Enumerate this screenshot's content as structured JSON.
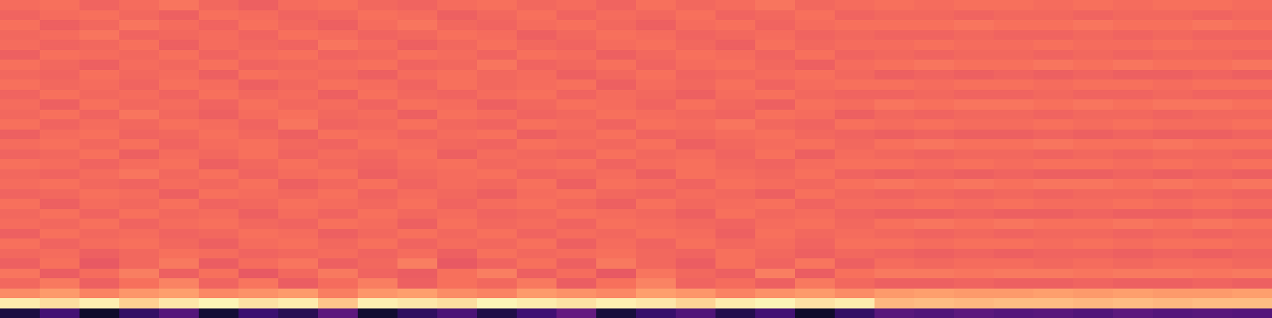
{
  "chart_data": {
    "type": "heatmap",
    "zlim": [
      0,
      1
    ],
    "tick_labels": false,
    "cells": [
      [
        0.69,
        0.7,
        0.67,
        0.69,
        0.71,
        0.68,
        0.66,
        0.69,
        0.7,
        0.68,
        0.67,
        0.69,
        0.7,
        0.68,
        0.69,
        0.67,
        0.7,
        0.68,
        0.69,
        0.71,
        0.68,
        0.69,
        0.7,
        0.69,
        0.7,
        0.7,
        0.69,
        0.7,
        0.69,
        0.7,
        0.7,
        0.69
      ],
      [
        0.67,
        0.69,
        0.7,
        0.68,
        0.66,
        0.7,
        0.69,
        0.67,
        0.68,
        0.7,
        0.69,
        0.66,
        0.68,
        0.7,
        0.67,
        0.69,
        0.68,
        0.7,
        0.67,
        0.68,
        0.7,
        0.67,
        0.68,
        0.68,
        0.67,
        0.68,
        0.68,
        0.67,
        0.68,
        0.68,
        0.67,
        0.68
      ],
      [
        0.7,
        0.66,
        0.68,
        0.71,
        0.69,
        0.67,
        0.7,
        0.68,
        0.66,
        0.69,
        0.71,
        0.68,
        0.67,
        0.69,
        0.7,
        0.68,
        0.66,
        0.69,
        0.7,
        0.67,
        0.69,
        0.7,
        0.7,
        0.7,
        0.71,
        0.7,
        0.7,
        0.71,
        0.7,
        0.7,
        0.71,
        0.7
      ],
      [
        0.68,
        0.69,
        0.71,
        0.67,
        0.68,
        0.69,
        0.67,
        0.7,
        0.69,
        0.67,
        0.68,
        0.7,
        0.69,
        0.66,
        0.68,
        0.7,
        0.69,
        0.67,
        0.68,
        0.69,
        0.67,
        0.68,
        0.67,
        0.67,
        0.68,
        0.67,
        0.67,
        0.68,
        0.67,
        0.68,
        0.67,
        0.67
      ],
      [
        0.69,
        0.67,
        0.68,
        0.7,
        0.66,
        0.69,
        0.68,
        0.67,
        0.71,
        0.69,
        0.66,
        0.68,
        0.7,
        0.68,
        0.67,
        0.69,
        0.7,
        0.68,
        0.66,
        0.7,
        0.68,
        0.69,
        0.69,
        0.7,
        0.69,
        0.69,
        0.7,
        0.69,
        0.69,
        0.7,
        0.69,
        0.69
      ],
      [
        0.66,
        0.7,
        0.69,
        0.68,
        0.7,
        0.67,
        0.69,
        0.7,
        0.67,
        0.68,
        0.7,
        0.69,
        0.67,
        0.7,
        0.69,
        0.66,
        0.68,
        0.7,
        0.69,
        0.67,
        0.7,
        0.67,
        0.68,
        0.67,
        0.68,
        0.68,
        0.67,
        0.68,
        0.67,
        0.68,
        0.68,
        0.67
      ],
      [
        0.7,
        0.68,
        0.66,
        0.69,
        0.68,
        0.7,
        0.67,
        0.68,
        0.69,
        0.7,
        0.67,
        0.68,
        0.71,
        0.67,
        0.68,
        0.7,
        0.67,
        0.69,
        0.7,
        0.68,
        0.66,
        0.69,
        0.7,
        0.71,
        0.7,
        0.7,
        0.71,
        0.7,
        0.71,
        0.7,
        0.7,
        0.71
      ],
      [
        0.68,
        0.67,
        0.7,
        0.68,
        0.69,
        0.66,
        0.7,
        0.69,
        0.68,
        0.66,
        0.69,
        0.7,
        0.68,
        0.69,
        0.66,
        0.68,
        0.7,
        0.67,
        0.68,
        0.69,
        0.7,
        0.68,
        0.66,
        0.67,
        0.66,
        0.67,
        0.66,
        0.67,
        0.66,
        0.66,
        0.67,
        0.66
      ],
      [
        0.7,
        0.68,
        0.69,
        0.67,
        0.7,
        0.69,
        0.66,
        0.68,
        0.7,
        0.69,
        0.67,
        0.7,
        0.68,
        0.69,
        0.7,
        0.66,
        0.69,
        0.68,
        0.7,
        0.67,
        0.69,
        0.7,
        0.7,
        0.69,
        0.7,
        0.7,
        0.69,
        0.7,
        0.7,
        0.69,
        0.7,
        0.7
      ],
      [
        0.67,
        0.7,
        0.68,
        0.69,
        0.67,
        0.7,
        0.68,
        0.69,
        0.66,
        0.7,
        0.68,
        0.67,
        0.69,
        0.7,
        0.67,
        0.69,
        0.68,
        0.66,
        0.69,
        0.7,
        0.68,
        0.67,
        0.67,
        0.68,
        0.67,
        0.67,
        0.68,
        0.67,
        0.67,
        0.68,
        0.67,
        0.67
      ],
      [
        0.69,
        0.66,
        0.7,
        0.68,
        0.69,
        0.67,
        0.7,
        0.68,
        0.69,
        0.67,
        0.7,
        0.69,
        0.66,
        0.68,
        0.7,
        0.69,
        0.67,
        0.7,
        0.68,
        0.66,
        0.7,
        0.69,
        0.71,
        0.7,
        0.71,
        0.71,
        0.7,
        0.71,
        0.7,
        0.71,
        0.71,
        0.7
      ],
      [
        0.68,
        0.7,
        0.67,
        0.71,
        0.68,
        0.66,
        0.69,
        0.7,
        0.68,
        0.69,
        0.66,
        0.7,
        0.69,
        0.67,
        0.68,
        0.7,
        0.69,
        0.68,
        0.67,
        0.7,
        0.69,
        0.66,
        0.68,
        0.67,
        0.68,
        0.68,
        0.67,
        0.68,
        0.68,
        0.67,
        0.68,
        0.68
      ],
      [
        0.7,
        0.67,
        0.69,
        0.68,
        0.7,
        0.69,
        0.67,
        0.71,
        0.67,
        0.68,
        0.7,
        0.68,
        0.67,
        0.7,
        0.69,
        0.67,
        0.7,
        0.69,
        0.71,
        0.68,
        0.67,
        0.7,
        0.69,
        0.7,
        0.69,
        0.69,
        0.7,
        0.69,
        0.7,
        0.69,
        0.69,
        0.7
      ],
      [
        0.66,
        0.69,
        0.7,
        0.67,
        0.68,
        0.7,
        0.68,
        0.66,
        0.7,
        0.69,
        0.67,
        0.69,
        0.7,
        0.66,
        0.68,
        0.7,
        0.67,
        0.68,
        0.69,
        0.7,
        0.68,
        0.67,
        0.66,
        0.67,
        0.66,
        0.66,
        0.67,
        0.66,
        0.67,
        0.66,
        0.66,
        0.67
      ],
      [
        0.69,
        0.7,
        0.68,
        0.7,
        0.67,
        0.69,
        0.7,
        0.68,
        0.67,
        0.7,
        0.69,
        0.68,
        0.67,
        0.7,
        0.69,
        0.68,
        0.7,
        0.66,
        0.68,
        0.69,
        0.7,
        0.68,
        0.7,
        0.71,
        0.7,
        0.7,
        0.71,
        0.7,
        0.7,
        0.71,
        0.7,
        0.7
      ],
      [
        0.67,
        0.68,
        0.7,
        0.66,
        0.69,
        0.68,
        0.7,
        0.67,
        0.69,
        0.68,
        0.7,
        0.66,
        0.69,
        0.68,
        0.67,
        0.7,
        0.68,
        0.69,
        0.67,
        0.7,
        0.66,
        0.69,
        0.68,
        0.67,
        0.68,
        0.68,
        0.67,
        0.68,
        0.67,
        0.68,
        0.68,
        0.67
      ],
      [
        0.7,
        0.69,
        0.67,
        0.69,
        0.7,
        0.66,
        0.68,
        0.7,
        0.68,
        0.67,
        0.69,
        0.7,
        0.68,
        0.69,
        0.7,
        0.67,
        0.69,
        0.7,
        0.68,
        0.67,
        0.69,
        0.7,
        0.7,
        0.69,
        0.7,
        0.69,
        0.7,
        0.7,
        0.69,
        0.7,
        0.69,
        0.7
      ],
      [
        0.68,
        0.67,
        0.69,
        0.71,
        0.68,
        0.7,
        0.67,
        0.69,
        0.7,
        0.66,
        0.68,
        0.69,
        0.7,
        0.67,
        0.68,
        0.69,
        0.66,
        0.7,
        0.69,
        0.68,
        0.7,
        0.67,
        0.66,
        0.67,
        0.66,
        0.67,
        0.66,
        0.66,
        0.67,
        0.66,
        0.67,
        0.66
      ],
      [
        0.69,
        0.7,
        0.68,
        0.67,
        0.69,
        0.68,
        0.7,
        0.66,
        0.68,
        0.7,
        0.67,
        0.69,
        0.68,
        0.7,
        0.66,
        0.7,
        0.69,
        0.67,
        0.7,
        0.69,
        0.68,
        0.7,
        0.71,
        0.7,
        0.71,
        0.7,
        0.71,
        0.71,
        0.7,
        0.71,
        0.7,
        0.71
      ],
      [
        0.67,
        0.68,
        0.7,
        0.69,
        0.66,
        0.7,
        0.69,
        0.68,
        0.7,
        0.67,
        0.69,
        0.68,
        0.66,
        0.69,
        0.7,
        0.68,
        0.67,
        0.69,
        0.68,
        0.66,
        0.7,
        0.68,
        0.67,
        0.68,
        0.67,
        0.68,
        0.67,
        0.68,
        0.68,
        0.67,
        0.68,
        0.67
      ],
      [
        0.7,
        0.66,
        0.69,
        0.68,
        0.7,
        0.67,
        0.68,
        0.7,
        0.69,
        0.68,
        0.7,
        0.67,
        0.69,
        0.7,
        0.68,
        0.66,
        0.7,
        0.68,
        0.69,
        0.7,
        0.67,
        0.69,
        0.69,
        0.7,
        0.69,
        0.7,
        0.69,
        0.69,
        0.7,
        0.69,
        0.7,
        0.69
      ],
      [
        0.68,
        0.7,
        0.67,
        0.7,
        0.68,
        0.69,
        0.66,
        0.69,
        0.67,
        0.7,
        0.68,
        0.69,
        0.67,
        0.68,
        0.7,
        0.69,
        0.68,
        0.66,
        0.7,
        0.68,
        0.69,
        0.67,
        0.66,
        0.66,
        0.67,
        0.66,
        0.66,
        0.67,
        0.66,
        0.66,
        0.67,
        0.66
      ],
      [
        0.69,
        0.68,
        0.7,
        0.67,
        0.69,
        0.7,
        0.68,
        0.67,
        0.7,
        0.69,
        0.66,
        0.7,
        0.68,
        0.69,
        0.67,
        0.7,
        0.69,
        0.68,
        0.67,
        0.69,
        0.7,
        0.68,
        0.7,
        0.71,
        0.7,
        0.71,
        0.7,
        0.7,
        0.71,
        0.7,
        0.71,
        0.7
      ],
      [
        0.66,
        0.7,
        0.68,
        0.69,
        0.67,
        0.68,
        0.7,
        0.69,
        0.66,
        0.68,
        0.7,
        0.68,
        0.7,
        0.67,
        0.69,
        0.68,
        0.7,
        0.69,
        0.66,
        0.7,
        0.68,
        0.69,
        0.68,
        0.67,
        0.68,
        0.67,
        0.68,
        0.68,
        0.67,
        0.68,
        0.67,
        0.68
      ],
      [
        0.7,
        0.67,
        0.69,
        0.7,
        0.68,
        0.66,
        0.69,
        0.7,
        0.68,
        0.7,
        0.67,
        0.69,
        0.68,
        0.7,
        0.66,
        0.69,
        0.67,
        0.7,
        0.68,
        0.69,
        0.67,
        0.7,
        0.7,
        0.69,
        0.7,
        0.7,
        0.69,
        0.7,
        0.69,
        0.7,
        0.7,
        0.69
      ],
      [
        0.68,
        0.69,
        0.66,
        0.68,
        0.7,
        0.69,
        0.67,
        0.68,
        0.69,
        0.67,
        0.69,
        0.66,
        0.7,
        0.68,
        0.69,
        0.7,
        0.68,
        0.67,
        0.7,
        0.68,
        0.66,
        0.68,
        0.67,
        0.66,
        0.67,
        0.66,
        0.67,
        0.67,
        0.66,
        0.67,
        0.66,
        0.67
      ],
      [
        0.66,
        0.7,
        0.64,
        0.68,
        0.72,
        0.65,
        0.69,
        0.71,
        0.66,
        0.68,
        0.73,
        0.64,
        0.67,
        0.7,
        0.66,
        0.72,
        0.68,
        0.65,
        0.7,
        0.67,
        0.71,
        0.66,
        0.69,
        0.68,
        0.69,
        0.69,
        0.68,
        0.69,
        0.68,
        0.69,
        0.69,
        0.68
      ],
      [
        0.71,
        0.65,
        0.69,
        0.73,
        0.66,
        0.7,
        0.64,
        0.68,
        0.72,
        0.67,
        0.65,
        0.7,
        0.73,
        0.66,
        0.69,
        0.64,
        0.71,
        0.68,
        0.66,
        0.73,
        0.65,
        0.7,
        0.72,
        0.72,
        0.71,
        0.72,
        0.72,
        0.71,
        0.72,
        0.72,
        0.71,
        0.72
      ],
      [
        0.68,
        0.72,
        0.66,
        0.7,
        0.74,
        0.67,
        0.71,
        0.65,
        0.69,
        0.73,
        0.66,
        0.7,
        0.68,
        0.72,
        0.65,
        0.7,
        0.74,
        0.67,
        0.69,
        0.66,
        0.72,
        0.68,
        0.66,
        0.66,
        0.67,
        0.66,
        0.66,
        0.67,
        0.66,
        0.66,
        0.67,
        0.66
      ],
      [
        0.76,
        0.79,
        0.74,
        0.78,
        0.8,
        0.75,
        0.77,
        0.79,
        0.73,
        0.78,
        0.8,
        0.76,
        0.74,
        0.79,
        0.77,
        0.75,
        0.8,
        0.78,
        0.74,
        0.77,
        0.79,
        0.76,
        0.79,
        0.8,
        0.79,
        0.79,
        0.8,
        0.79,
        0.8,
        0.79,
        0.79,
        0.8
      ],
      [
        0.96,
        0.93,
        0.97,
        0.9,
        0.95,
        0.98,
        0.94,
        0.96,
        0.88,
        0.97,
        0.95,
        0.93,
        0.98,
        0.96,
        0.94,
        0.97,
        0.95,
        0.91,
        0.96,
        0.98,
        0.94,
        0.96,
        0.85,
        0.86,
        0.85,
        0.86,
        0.86,
        0.85,
        0.86,
        0.85,
        0.86,
        0.86
      ],
      [
        0.12,
        0.22,
        0.08,
        0.18,
        0.26,
        0.1,
        0.2,
        0.15,
        0.28,
        0.09,
        0.17,
        0.24,
        0.13,
        0.21,
        0.3,
        0.11,
        0.19,
        0.25,
        0.14,
        0.22,
        0.08,
        0.18,
        0.27,
        0.25,
        0.28,
        0.26,
        0.27,
        0.25,
        0.28,
        0.26,
        0.27,
        0.26
      ]
    ]
  }
}
